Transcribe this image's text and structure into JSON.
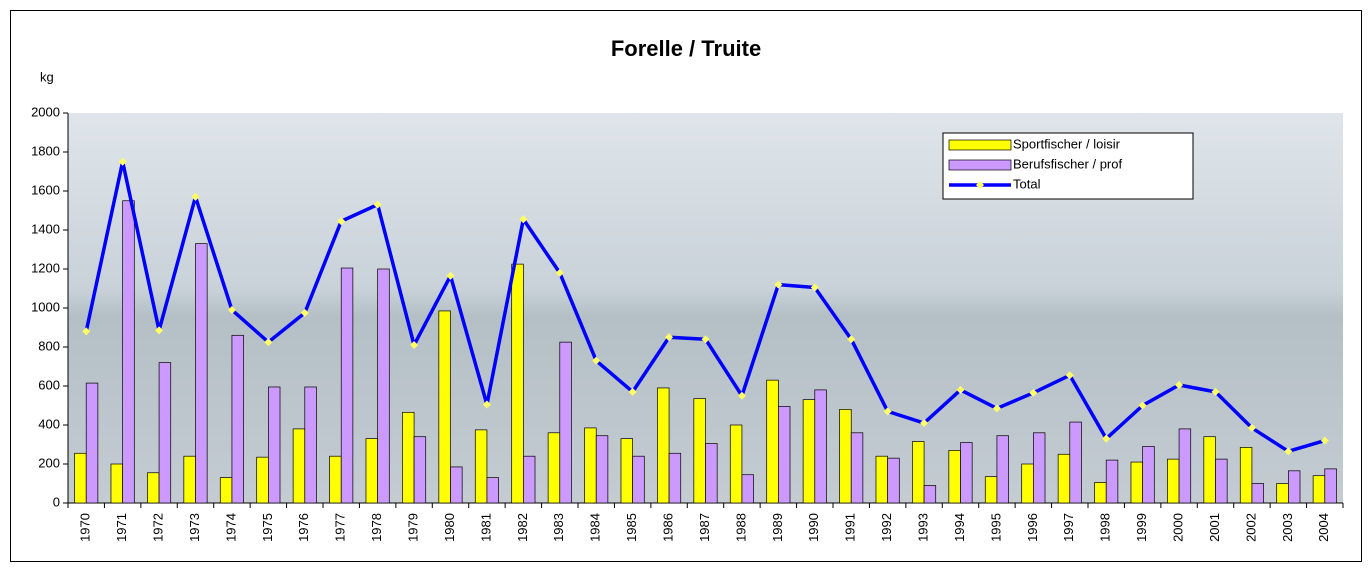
{
  "chart_data": {
    "type": "bar-line",
    "title": "Forelle / Truite",
    "y_label": "kg",
    "categories": [
      "1970",
      "1971",
      "1972",
      "1973",
      "1974",
      "1975",
      "1976",
      "1977",
      "1978",
      "1979",
      "1980",
      "1981",
      "1982",
      "1983",
      "1984",
      "1985",
      "1986",
      "1987",
      "1988",
      "1989",
      "1990",
      "1991",
      "1992",
      "1993",
      "1994",
      "1995",
      "1996",
      "1997",
      "1998",
      "1999",
      "2000",
      "2001",
      "2002",
      "2003",
      "2004"
    ],
    "series": [
      {
        "name": "Sportfischer / loisir",
        "type": "bar",
        "color": "#ffff00",
        "values": [
          255,
          200,
          155,
          240,
          130,
          235,
          380,
          240,
          330,
          465,
          985,
          375,
          1225,
          360,
          385,
          330,
          590,
          535,
          400,
          630,
          530,
          480,
          240,
          315,
          270,
          135,
          200,
          250,
          105,
          210,
          225,
          340,
          285,
          100,
          140
        ]
      },
      {
        "name": "Berufsfischer / prof",
        "type": "bar",
        "color": "#cc99ff",
        "values": [
          615,
          1550,
          720,
          1330,
          860,
          595,
          595,
          1205,
          1200,
          340,
          185,
          130,
          240,
          825,
          345,
          240,
          255,
          305,
          145,
          495,
          580,
          360,
          230,
          90,
          310,
          345,
          360,
          415,
          220,
          290,
          380,
          225,
          100,
          165,
          175
        ]
      },
      {
        "name": "Total",
        "type": "line",
        "color": "#0000ff",
        "marker_color": "#ffff66",
        "values": [
          880,
          1750,
          885,
          1570,
          990,
          825,
          975,
          1445,
          1530,
          810,
          1165,
          505,
          1455,
          1180,
          730,
          570,
          850,
          840,
          550,
          1120,
          1105,
          840,
          470,
          410,
          580,
          485,
          565,
          655,
          330,
          500,
          605,
          570,
          385,
          265,
          320
        ]
      }
    ],
    "ylim": [
      0,
      2000
    ],
    "yticks": [
      0,
      200,
      400,
      600,
      800,
      1000,
      1200,
      1400,
      1600,
      1800,
      2000
    ],
    "grid": false,
    "legend": "top-right"
  }
}
